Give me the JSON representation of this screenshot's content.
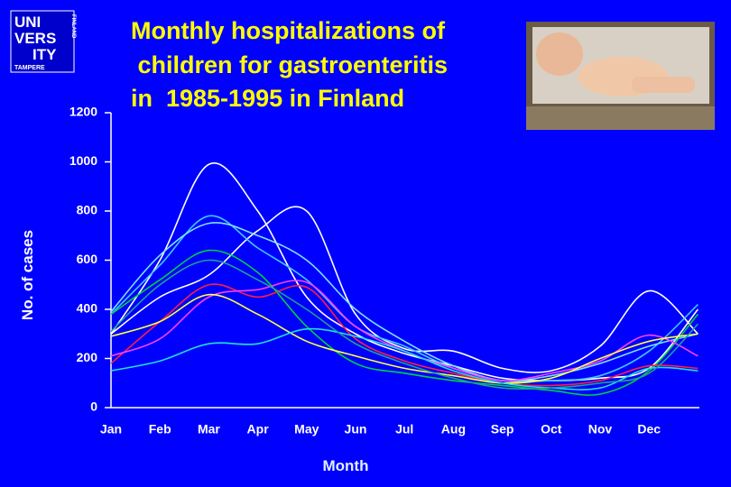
{
  "chart_data": {
    "type": "line",
    "title": [
      "Monthly hospitalizations of",
      " children for gastroenteritis",
      "in  1985-1995 in Finland"
    ],
    "logo": [
      "UNI",
      "VERS",
      "ITY",
      "TAMPERE",
      "FINLAND"
    ],
    "x_label": "Month",
    "y_label": "No. of cases",
    "categories": [
      "Jan",
      "Feb",
      "Mar",
      "Apr",
      "May",
      "Jun",
      "Jul",
      "Aug",
      "Sep",
      "Oct",
      "Nov",
      "Dec",
      null
    ],
    "ylim": [
      0,
      1200
    ],
    "yticks": [
      0,
      200,
      400,
      600,
      800,
      1000,
      1200
    ],
    "series": [
      {
        "color": "#ffffff",
        "values": [
          300,
          600,
          990,
          800,
          450,
          300,
          220,
          170,
          120,
          110,
          120,
          160,
          400
        ]
      },
      {
        "color": "#ffffff",
        "values": [
          300,
          450,
          540,
          720,
          800,
          380,
          240,
          230,
          160,
          150,
          250,
          475,
          300
        ]
      },
      {
        "color": "#40c8ff",
        "values": [
          380,
          580,
          780,
          650,
          520,
          330,
          250,
          160,
          110,
          110,
          130,
          230,
          420
        ]
      },
      {
        "color": "#80e0ff",
        "values": [
          390,
          620,
          750,
          700,
          600,
          400,
          270,
          170,
          110,
          130,
          180,
          250,
          300
        ]
      },
      {
        "color": "#00d040",
        "values": [
          380,
          520,
          640,
          550,
          330,
          180,
          140,
          110,
          90,
          70,
          55,
          150,
          380
        ]
      },
      {
        "color": "#ff2040",
        "values": [
          180,
          350,
          500,
          450,
          490,
          280,
          190,
          140,
          100,
          90,
          110,
          170,
          160
        ]
      },
      {
        "color": "#ff40ff",
        "values": [
          210,
          280,
          450,
          480,
          510,
          330,
          230,
          160,
          110,
          140,
          190,
          295,
          210
        ]
      },
      {
        "color": "#ffff40",
        "values": [
          290,
          350,
          460,
          380,
          270,
          210,
          160,
          130,
          100,
          120,
          200,
          270,
          300
        ]
      },
      {
        "color": "#20e0e0",
        "values": [
          150,
          190,
          260,
          260,
          320,
          290,
          230,
          150,
          100,
          80,
          80,
          160,
          150
        ]
      },
      {
        "color": "#20a090",
        "values": [
          310,
          500,
          600,
          520,
          400,
          260,
          180,
          120,
          80,
          80,
          100,
          140,
          340
        ]
      }
    ]
  }
}
